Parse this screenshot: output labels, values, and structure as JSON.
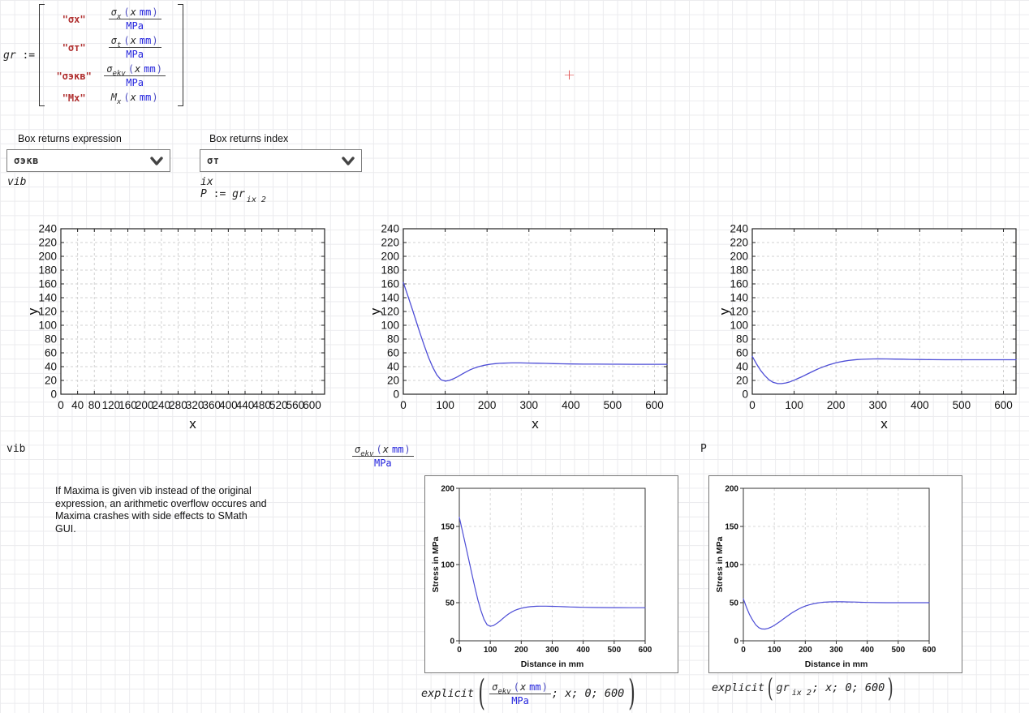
{
  "worksheet": {
    "cursor_glyph": "+"
  },
  "colors": {
    "curve": "#4d4dd6",
    "string_red": "#b03030",
    "unit_blue": "#2323dd"
  },
  "matrix": {
    "lhs": "gr",
    "assign": ":=",
    "rows": [
      {
        "label": "\"σx\"",
        "sigma": "σ",
        "sub": "x",
        "open": "(",
        "var": "x",
        "unit": "mm",
        "close": ")",
        "denom": "MPa"
      },
      {
        "label": "\"σт\"",
        "sigma": "σ",
        "sub": "t",
        "open": "(",
        "var": "x",
        "unit": "mm",
        "close": ")",
        "denom": "MPa"
      },
      {
        "label": "\"σэкв\"",
        "sigma": "σ",
        "sub": "ekv",
        "open": "(",
        "var": "x",
        "unit": "mm",
        "close": ")",
        "denom": "MPa"
      },
      {
        "label": "\"Mx\"",
        "sigma": "M",
        "sub": "x",
        "open": "(",
        "var": "x",
        "unit": "mm",
        "close": ")",
        "denom": ""
      }
    ]
  },
  "controls": {
    "expr_box": {
      "label": "Box returns expression",
      "value": "σэкв"
    },
    "index_box": {
      "label": "Box returns index",
      "value": "σт"
    },
    "vib": "vib",
    "ix": "ix",
    "p_def": {
      "lhs": "P",
      "assign": ":=",
      "base": "gr",
      "subscript": "ix 2"
    }
  },
  "mid": {
    "vib": "vib",
    "p": "P",
    "fraction": {
      "sigma": "σ",
      "sub": "ekv",
      "open": "(",
      "var": "x",
      "unit": "mm",
      "close": ")",
      "denom": "MPa"
    }
  },
  "note": {
    "lines": [
      "If Maxima is given vib instead of the original",
      "expression, an arithmetic overflow occures and",
      "Maxima crashes with side effects to SMath",
      "GUI."
    ]
  },
  "explicit_a": {
    "fn": "explicit",
    "fraction": {
      "sigma": "σ",
      "sub": "ekv",
      "open": "(",
      "var": "x",
      "unit": "mm",
      "close": ")",
      "denom": "MPa"
    },
    "args": "; x; 0; 600"
  },
  "explicit_b": {
    "fn": "explicit",
    "base": "gr",
    "subscript": "ix 2",
    "args": "; x; 0; 600"
  },
  "series": {
    "sigma_ekv": {
      "x": [
        0,
        10,
        20,
        30,
        40,
        50,
        60,
        70,
        80,
        90,
        100,
        110,
        120,
        130,
        140,
        150,
        160,
        170,
        180,
        190,
        200,
        210,
        220,
        230,
        240,
        250,
        260,
        280,
        300,
        320,
        340,
        360,
        380,
        400,
        430,
        460,
        500,
        550,
        600,
        630
      ],
      "y": [
        162,
        144,
        126,
        107,
        88.5,
        70.5,
        53.5,
        39.5,
        28,
        21,
        19,
        20,
        22.5,
        25.5,
        29,
        32.5,
        35.5,
        38,
        40,
        41.5,
        42.7,
        43.6,
        44.3,
        44.8,
        45.1,
        45.3,
        45.4,
        45.4,
        45.2,
        45,
        44.7,
        44.4,
        44.1,
        43.9,
        43.7,
        43.6,
        43.5,
        43.4,
        43.4,
        43.4
      ]
    },
    "P": {
      "x": [
        0,
        10,
        20,
        30,
        40,
        50,
        60,
        70,
        80,
        90,
        100,
        110,
        120,
        130,
        140,
        150,
        160,
        170,
        180,
        190,
        200,
        210,
        220,
        230,
        240,
        250,
        260,
        280,
        300,
        320,
        340,
        360,
        380,
        400,
        430,
        460,
        500,
        550,
        600,
        630
      ],
      "y": [
        55,
        44,
        34.5,
        27,
        21,
        17.2,
        15.5,
        15.4,
        16.3,
        18,
        20.3,
        23,
        25.8,
        28.8,
        31.8,
        34.7,
        37.4,
        39.8,
        42,
        43.9,
        45.5,
        46.9,
        48,
        48.9,
        49.6,
        50.2,
        50.6,
        51.1,
        51.3,
        51.2,
        51,
        50.8,
        50.5,
        50.3,
        50.1,
        50,
        50,
        50,
        50,
        50
      ]
    }
  },
  "chart_data": [
    {
      "id": "plot1",
      "type": "line",
      "size": "big",
      "title": "",
      "xlabel": "x",
      "ylabel": "y",
      "xlim": [
        0,
        630
      ],
      "ylim": [
        0,
        240
      ],
      "grid": true,
      "xticks": [
        0,
        40,
        80,
        120,
        160,
        200,
        240,
        280,
        320,
        360,
        400,
        440,
        480,
        520,
        560,
        600
      ],
      "yticks": [
        0,
        20,
        40,
        60,
        80,
        100,
        120,
        140,
        160,
        180,
        200,
        220,
        240
      ],
      "series": []
    },
    {
      "id": "plot2",
      "type": "line",
      "size": "big",
      "title": "",
      "xlabel": "x",
      "ylabel": "y",
      "xlim": [
        0,
        630
      ],
      "ylim": [
        0,
        240
      ],
      "grid": true,
      "xticks": [
        0,
        100,
        200,
        300,
        400,
        500,
        600
      ],
      "yticks": [
        0,
        20,
        40,
        60,
        80,
        100,
        120,
        140,
        160,
        180,
        200,
        220,
        240
      ],
      "series": [
        "sigma_ekv"
      ]
    },
    {
      "id": "plot3",
      "type": "line",
      "size": "big",
      "title": "",
      "xlabel": "x",
      "ylabel": "y",
      "xlim": [
        0,
        630
      ],
      "ylim": [
        0,
        240
      ],
      "grid": true,
      "xticks": [
        0,
        100,
        200,
        300,
        400,
        500,
        600
      ],
      "yticks": [
        0,
        20,
        40,
        60,
        80,
        100,
        120,
        140,
        160,
        180,
        200,
        220,
        240
      ],
      "series": [
        "P"
      ]
    },
    {
      "id": "plotA",
      "type": "line",
      "size": "small",
      "title": "",
      "xlabel": "Distance in mm",
      "ylabel": "Stress in MPa",
      "xlim": [
        0,
        600
      ],
      "ylim": [
        0,
        200
      ],
      "grid": true,
      "xticks": [
        0,
        100,
        200,
        300,
        400,
        500,
        600
      ],
      "yticks": [
        0,
        50,
        100,
        150,
        200
      ],
      "series": [
        "sigma_ekv"
      ]
    },
    {
      "id": "plotB",
      "type": "line",
      "size": "small",
      "title": "",
      "xlabel": "Distance in mm",
      "ylabel": "Stress in MPa",
      "xlim": [
        0,
        600
      ],
      "ylim": [
        0,
        200
      ],
      "grid": true,
      "xticks": [
        0,
        100,
        200,
        300,
        400,
        500,
        600
      ],
      "yticks": [
        0,
        50,
        100,
        150,
        200
      ],
      "series": [
        "P"
      ]
    }
  ]
}
